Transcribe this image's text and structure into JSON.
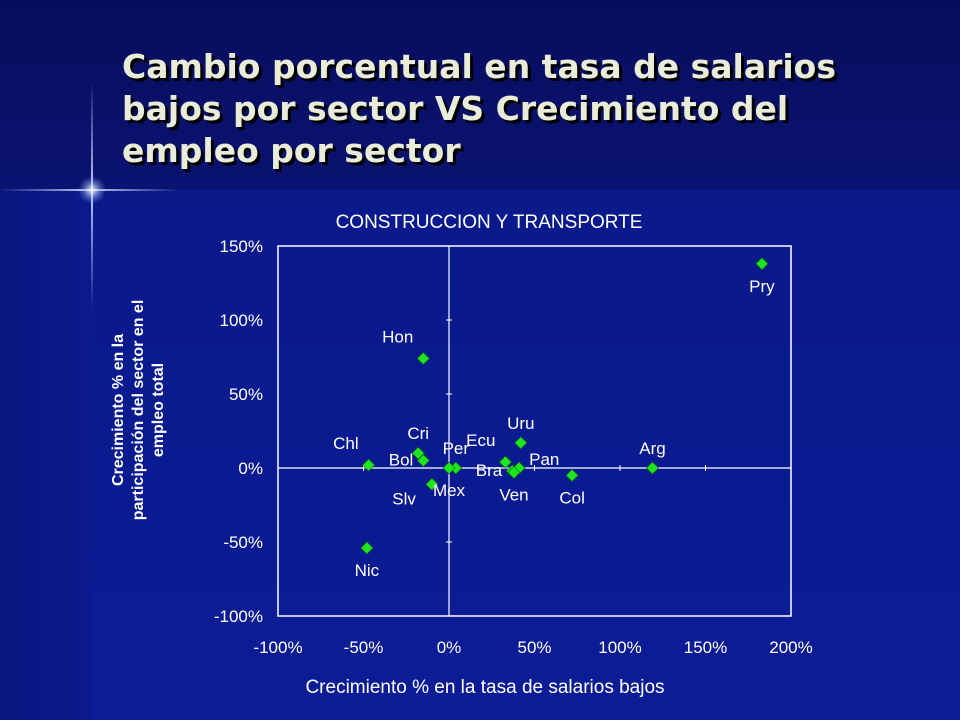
{
  "slide": {
    "title": "Cambio porcentual en tasa de salarios bajos por sector VS Crecimiento del empleo por sector"
  },
  "colors": {
    "background": "#0a1a8c",
    "plot_area": "#ffffff",
    "marker": "#1ee61e",
    "text": "#ffffff",
    "title_text": "#e8ecd8"
  },
  "chart_data": {
    "type": "scatter",
    "title": "CONSTRUCCION Y TRANSPORTE",
    "xlabel": "Crecimiento % en la tasa de salarios bajos",
    "ylabel": "Crecimiento % en la participación del sector en el empleo total",
    "xlim": [
      -100,
      200
    ],
    "ylim": [
      -100,
      150
    ],
    "x_ticks": [
      -100,
      -50,
      0,
      50,
      100,
      150,
      200
    ],
    "y_ticks": [
      -100,
      -50,
      0,
      50,
      100,
      150
    ],
    "x_tick_labels": [
      "-100%",
      "-50%",
      "0%",
      "50%",
      "100%",
      "150%",
      "200%"
    ],
    "y_tick_labels": [
      "-100%",
      "-50%",
      "0%",
      "50%",
      "100%",
      "150%"
    ],
    "grid": false,
    "legend": "none",
    "marker": "diamond",
    "points": [
      {
        "label": "Pry",
        "x": 183,
        "y": 138,
        "label_pos": "below"
      },
      {
        "label": "Hon",
        "x": -15,
        "y": 74,
        "label_pos": "above-left"
      },
      {
        "label": "Uru",
        "x": 42,
        "y": 17,
        "label_pos": "above"
      },
      {
        "label": "Arg",
        "x": 119,
        "y": 0,
        "label_pos": "above"
      },
      {
        "label": "Cri",
        "x": -18,
        "y": 10,
        "label_pos": "above"
      },
      {
        "label": "Bol",
        "x": -15,
        "y": 5,
        "label_pos": "left"
      },
      {
        "label": "Chl",
        "x": -47,
        "y": 2,
        "label_pos": "above-left"
      },
      {
        "label": "Per",
        "x": 4,
        "y": 0,
        "label_pos": "above"
      },
      {
        "label": "Ecu",
        "x": 33,
        "y": 4,
        "label_pos": "above-left"
      },
      {
        "label": "Pan",
        "x": 41,
        "y": 0,
        "label_pos": "right"
      },
      {
        "label": "Bra",
        "x": 37,
        "y": -2,
        "label_pos": "left"
      },
      {
        "label": "Ven",
        "x": 38,
        "y": -3,
        "label_pos": "below"
      },
      {
        "label": "Col",
        "x": 72,
        "y": -5,
        "label_pos": "below"
      },
      {
        "label": "Mex",
        "x": 0,
        "y": 0,
        "label_pos": "below"
      },
      {
        "label": "Slv",
        "x": -10,
        "y": -11,
        "label_pos": "below-left"
      },
      {
        "label": "Nic",
        "x": -48,
        "y": -54,
        "label_pos": "below"
      }
    ]
  }
}
